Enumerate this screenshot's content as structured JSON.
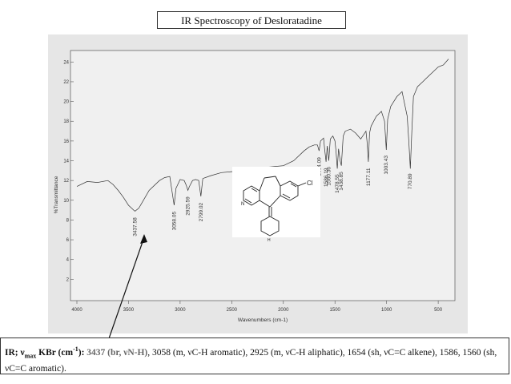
{
  "slide": {
    "title": "IR Spectroscopy of Desloratadine"
  },
  "structure_image": {
    "label_cl": "Cl",
    "label_n": "N",
    "label_nh": "H"
  },
  "caption": {
    "lead_prefix": "IR; ν",
    "lead_sub": "max",
    "lead_mid": " KBr (cm",
    "lead_sup": "-1",
    "lead_end": "):",
    "highlight": " 3437 (br, νN-H)",
    "rest": ", 3058 (m, νC-H aromatic), 2925 (m, νC-H aliphatic), 1654 (sh, νC=C alkene), 1586, 1560 (sh, νC=C aromatic)."
  },
  "chart_data": {
    "type": "line",
    "xlabel": "Wavenumbers (cm-1)",
    "ylabel": "%Transmittance",
    "xlim": [
      4000,
      400
    ],
    "ylim": [
      0,
      25
    ],
    "x_ticks": [
      4000,
      3500,
      3000,
      2500,
      2000,
      1500,
      1000,
      500
    ],
    "y_ticks": [
      2,
      4,
      6,
      8,
      10,
      12,
      14,
      16,
      18,
      20,
      22,
      24
    ],
    "grid": false,
    "series": [
      {
        "x": [
          4000,
          3900,
          3800,
          3700,
          3650,
          3600,
          3550,
          3500,
          3450,
          3437,
          3400,
          3350,
          3300,
          3200,
          3150,
          3100,
          3080,
          3058,
          3040,
          3000,
          2960,
          2940,
          2925,
          2910,
          2880,
          2850,
          2820,
          2799,
          2780,
          2700,
          2600,
          2500,
          2400,
          2300,
          2200,
          2100,
          2000,
          1900,
          1800,
          1750,
          1700,
          1670,
          1654,
          1640,
          1610,
          1600,
          1586,
          1575,
          1560,
          1545,
          1520,
          1500,
          1490,
          1478,
          1465,
          1450,
          1438,
          1420,
          1400,
          1350,
          1300,
          1250,
          1200,
          1190,
          1177,
          1165,
          1150,
          1100,
          1050,
          1020,
          1003,
          990,
          960,
          900,
          850,
          800,
          785,
          770,
          755,
          740,
          700,
          650,
          600,
          550,
          500,
          450,
          400
        ],
        "y": [
          11.4,
          11.9,
          11.8,
          12.0,
          11.6,
          11.0,
          10.3,
          9.5,
          9.0,
          8.9,
          9.2,
          10.1,
          11.0,
          12.0,
          12.3,
          12.4,
          11.0,
          9.5,
          11.2,
          12.1,
          12.0,
          11.5,
          11.0,
          11.4,
          12.0,
          12.1,
          12.0,
          10.4,
          12.2,
          12.5,
          12.8,
          12.9,
          13.0,
          13.1,
          13.3,
          13.4,
          13.5,
          14.0,
          15.0,
          15.4,
          15.6,
          15.6,
          15.0,
          16.0,
          16.3,
          15.2,
          13.9,
          15.5,
          14.0,
          16.2,
          16.5,
          16.0,
          15.0,
          13.2,
          15.2,
          14.0,
          13.5,
          16.5,
          17.0,
          17.2,
          16.8,
          16.2,
          17.0,
          16.0,
          13.9,
          16.8,
          17.5,
          18.5,
          19.0,
          18.0,
          15.1,
          18.2,
          19.5,
          20.5,
          21.0,
          18.5,
          16.0,
          13.2,
          17.0,
          20.5,
          21.5,
          22.0,
          22.5,
          23.0,
          23.5,
          23.7,
          24.3
        ]
      }
    ],
    "annotations": [
      {
        "x": 3437.58,
        "label": "3437.58"
      },
      {
        "x": 3058.05,
        "label": "3058.05"
      },
      {
        "x": 2925.59,
        "label": "2925.59"
      },
      {
        "x": 2799.02,
        "label": "2799.02"
      },
      {
        "x": 1654.09,
        "label": "1654.09"
      },
      {
        "x": 1586.19,
        "label": "1586.19"
      },
      {
        "x": 1560.36,
        "label": "1560.36"
      },
      {
        "x": 1478.55,
        "label": "1478.55"
      },
      {
        "x": 1438.85,
        "label": "1438.85"
      },
      {
        "x": 1177.11,
        "label": "1177.11"
      },
      {
        "x": 1003.43,
        "label": "1003.43"
      },
      {
        "x": 770.89,
        "label": "770.89"
      }
    ]
  }
}
